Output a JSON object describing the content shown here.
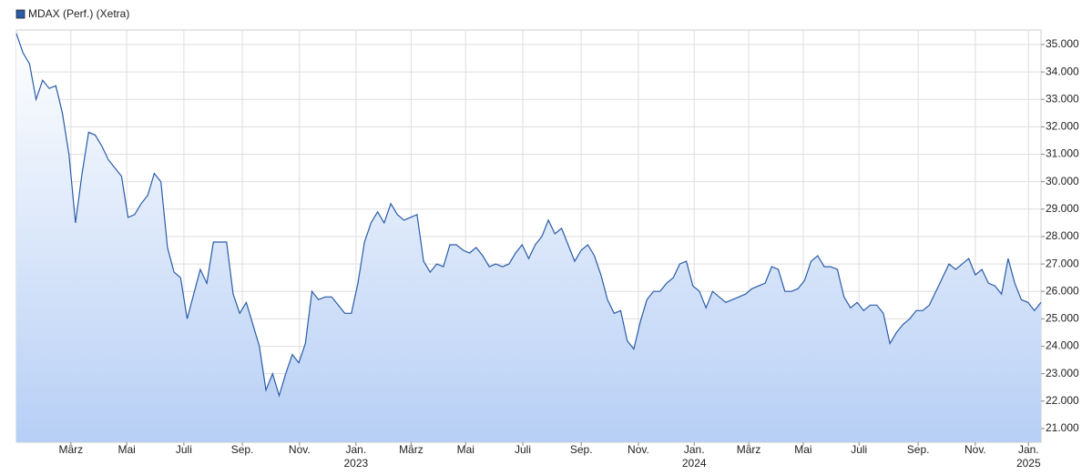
{
  "chart_data": {
    "type": "area",
    "legend": "MDAX (Perf.) (Xetra)",
    "color": "#2a5ca8",
    "grid": true,
    "values": [
      35400,
      34700,
      34300,
      33000,
      33700,
      33400,
      33500,
      32500,
      31000,
      28500,
      30300,
      31800,
      31700,
      31300,
      30800,
      30500,
      30200,
      28700,
      28800,
      29200,
      29500,
      30300,
      30000,
      27600,
      26700,
      26500,
      25000,
      25900,
      26800,
      26300,
      27800,
      27800,
      27800,
      25900,
      25200,
      25600,
      24800,
      24000,
      22400,
      23000,
      22200,
      23000,
      23700,
      23400,
      24100,
      26000,
      25700,
      25800,
      25800,
      25500,
      25200,
      25200,
      26300,
      27800,
      28500,
      28900,
      28500,
      29200,
      28800,
      28600,
      28700,
      28800,
      27100,
      26700,
      27000,
      26900,
      27700,
      27700,
      27500,
      27400,
      27600,
      27300,
      26900,
      27000,
      26900,
      27000,
      27400,
      27700,
      27200,
      27700,
      28000,
      28600,
      28100,
      28300,
      27700,
      27100,
      27500,
      27700,
      27300,
      26600,
      25700,
      25200,
      25300,
      24200,
      23900,
      24900,
      25700,
      26000,
      26000,
      26300,
      26500,
      27000,
      27100,
      26200,
      26000,
      25400,
      26000,
      25800,
      25600,
      25700,
      25800,
      25900,
      26100,
      26200,
      26300,
      26900,
      26800,
      26000,
      26000,
      26100,
      26400,
      27100,
      27300,
      26900,
      26900,
      26800,
      25800,
      25400,
      25600,
      25300,
      25500,
      25500,
      25200,
      24100,
      24500,
      24800,
      25000,
      25300,
      25300,
      25500,
      26000,
      26500,
      27000,
      26800,
      27000,
      27200,
      26600,
      26800,
      26300,
      26200,
      25900,
      27200,
      26300,
      25700,
      25600,
      25300,
      25600
    ],
    "xlim": [
      0,
      156
    ],
    "xticks": [
      {
        "value": 8.3,
        "label": "März"
      },
      {
        "value": 16.8,
        "label": "Mai"
      },
      {
        "value": 25.5,
        "label": "Juli"
      },
      {
        "value": 34.4,
        "label": "Sep."
      },
      {
        "value": 43.1,
        "label": "Nov."
      },
      {
        "value": 51.7,
        "label": "Jan."
      },
      {
        "value": 60.1,
        "label": "März"
      },
      {
        "value": 68.4,
        "label": "Mai"
      },
      {
        "value": 77.1,
        "label": "Juli"
      },
      {
        "value": 86,
        "label": "Sep."
      },
      {
        "value": 94.7,
        "label": "Nov."
      },
      {
        "value": 103.2,
        "label": "Jan."
      },
      {
        "value": 111.5,
        "label": "März"
      },
      {
        "value": 119.8,
        "label": "Mai"
      },
      {
        "value": 128.3,
        "label": "Juli"
      },
      {
        "value": 137.3,
        "label": "Sep."
      },
      {
        "value": 146,
        "label": "Nov."
      },
      {
        "value": 154.1,
        "label": "Jan."
      }
    ],
    "year_labels": [
      {
        "value": 51.7,
        "label": "2023"
      },
      {
        "value": 103.2,
        "label": "2024"
      },
      {
        "value": 154.1,
        "label": "2025"
      }
    ],
    "ylim": [
      20500,
      35530
    ],
    "yticks": [
      {
        "value": 21000,
        "label": "21.000"
      },
      {
        "value": 22000,
        "label": "22.000"
      },
      {
        "value": 23000,
        "label": "23.000"
      },
      {
        "value": 24000,
        "label": "24.000"
      },
      {
        "value": 25000,
        "label": "25.000"
      },
      {
        "value": 26000,
        "label": "26.000"
      },
      {
        "value": 27000,
        "label": "27.000"
      },
      {
        "value": 28000,
        "label": "28.000"
      },
      {
        "value": 29000,
        "label": "29.000"
      },
      {
        "value": 30000,
        "label": "30.000"
      },
      {
        "value": 31000,
        "label": "31.000"
      },
      {
        "value": 32000,
        "label": "32.000"
      },
      {
        "value": 33000,
        "label": "33.000"
      },
      {
        "value": 34000,
        "label": "34.000"
      },
      {
        "value": 35000,
        "label": "35.000"
      }
    ]
  }
}
